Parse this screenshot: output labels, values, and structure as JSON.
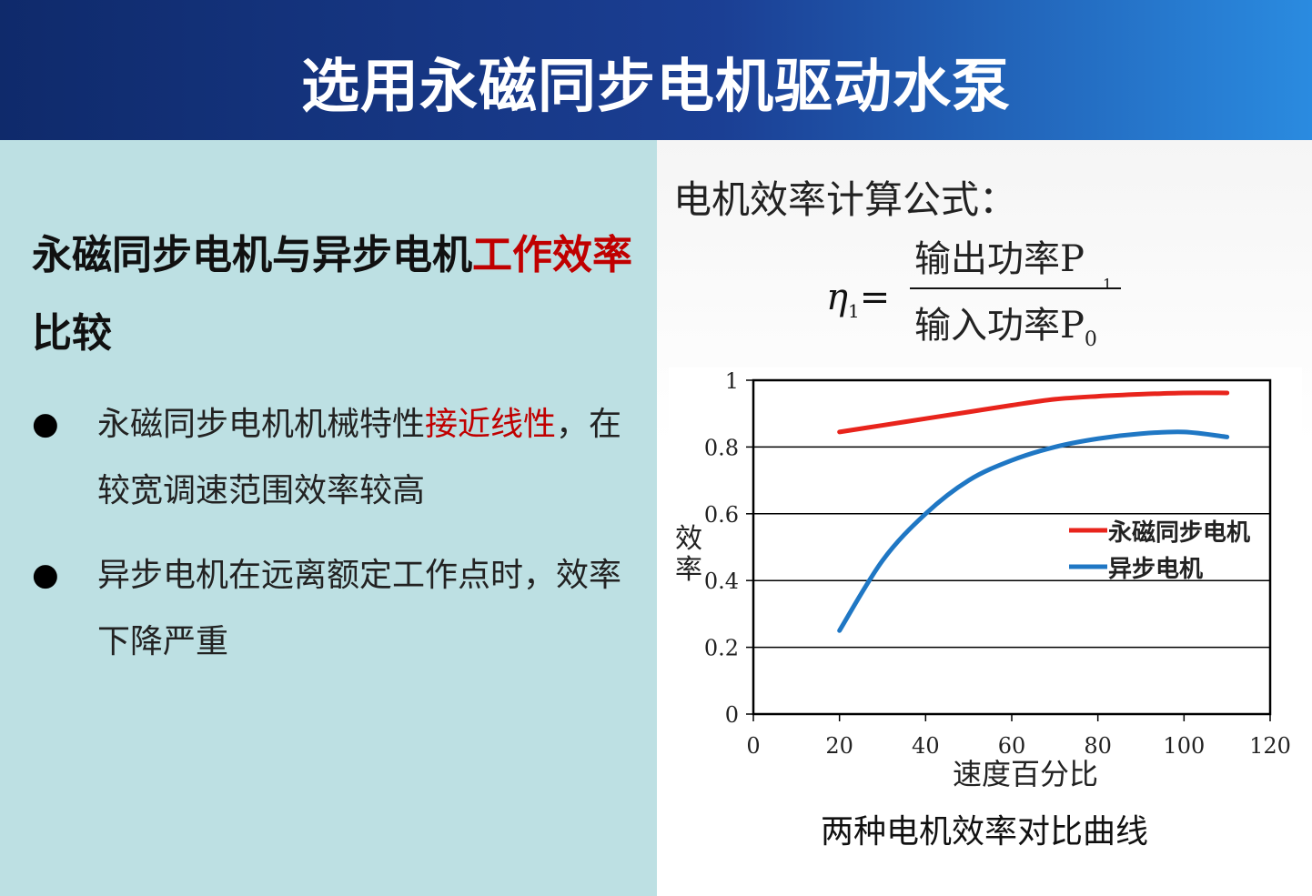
{
  "header": {
    "title": "选用永磁同步电机驱动水泵"
  },
  "left": {
    "heading_parts": [
      {
        "text": "永磁同步电机与异步电机",
        "color": "#111111"
      },
      {
        "text": "工作效率",
        "color": "#c00000"
      },
      {
        "text": "比较",
        "color": "#111111"
      }
    ],
    "bullets": [
      {
        "parts": [
          {
            "text": "永磁同步电机机械特性",
            "color": "#222222"
          },
          {
            "text": "接近线性",
            "color": "#c00000"
          },
          {
            "text": "，在较宽调速范围效率较高",
            "color": "#222222"
          }
        ]
      },
      {
        "parts": [
          {
            "text": "异步电机在远离额定工作点时，效率下降严重",
            "color": "#222222"
          }
        ]
      }
    ]
  },
  "formula": {
    "title": "电机效率计算公式：",
    "eta": "η",
    "eta_sub": "1",
    "equals": "=",
    "numerator": "输出功率P",
    "numerator_mark": "1",
    "denominator": "输入功率P",
    "denominator_sub": "0"
  },
  "chart_data": {
    "type": "line",
    "xlabel": "速度百分比",
    "ylabel": "效率",
    "xlim": [
      0,
      120
    ],
    "ylim": [
      0,
      1
    ],
    "x_ticks": [
      "0",
      "20",
      "40",
      "60",
      "80",
      "100",
      "120"
    ],
    "y_ticks": [
      "0",
      "0.2",
      "0.4",
      "0.6",
      "0.8",
      "1"
    ],
    "grid": "horizontal",
    "legend_position": "right-middle",
    "series": [
      {
        "name": "永磁同步电机",
        "color": "#e8241c",
        "x": [
          20,
          30,
          40,
          50,
          60,
          70,
          80,
          90,
          100,
          110
        ],
        "y": [
          0.845,
          0.865,
          0.885,
          0.905,
          0.925,
          0.943,
          0.952,
          0.958,
          0.962,
          0.962
        ]
      },
      {
        "name": "异步电机",
        "color": "#1f77c4",
        "x": [
          20,
          30,
          40,
          50,
          60,
          70,
          80,
          90,
          100,
          110
        ],
        "y": [
          0.25,
          0.46,
          0.6,
          0.7,
          0.76,
          0.8,
          0.825,
          0.84,
          0.845,
          0.83
        ]
      }
    ],
    "caption": "两种电机效率对比曲线"
  }
}
